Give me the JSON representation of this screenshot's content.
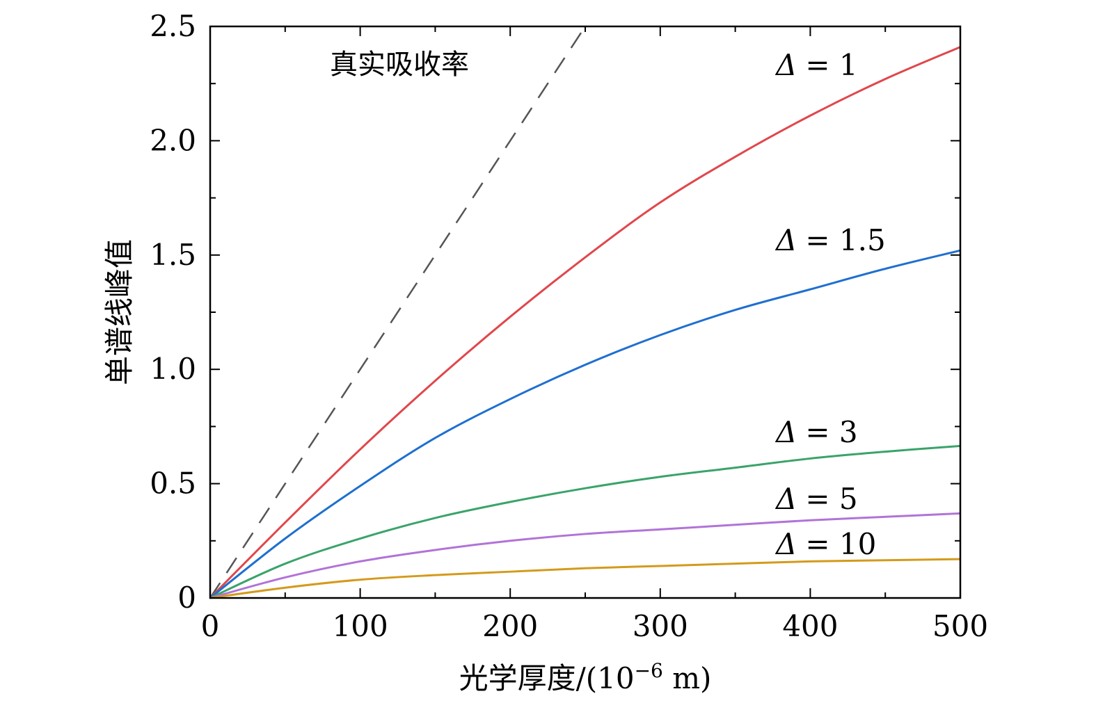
{
  "chart_data": {
    "type": "line",
    "title": "",
    "xlabel": "光学厚度/(10",
    "xlabel_sup": "−6",
    "xlabel_tail": " m)",
    "ylabel": "单谱线峰值",
    "xlim": [
      0,
      500
    ],
    "ylim": [
      0,
      2.5
    ],
    "x_ticks": [
      0,
      100,
      200,
      300,
      400,
      500
    ],
    "x_tick_labels": [
      "0",
      "100",
      "200",
      "300",
      "400",
      "500"
    ],
    "y_ticks": [
      0,
      0.5,
      1.0,
      1.5,
      2.0,
      2.5
    ],
    "y_tick_labels": [
      "0",
      "0.5",
      "1.0",
      "1.5",
      "2.0",
      "2.5"
    ],
    "x_minor_step": 50,
    "y_minor_step": 0.25,
    "grid": false,
    "annotation": "真实吸收率",
    "x": [
      0,
      50,
      100,
      150,
      200,
      250,
      300,
      350,
      400,
      450,
      500
    ],
    "series": [
      {
        "name": "真实吸收率",
        "label_symbol": "",
        "label_value": "",
        "color": "#555555",
        "dashed": true,
        "x": [
          0,
          250
        ],
        "values": [
          0,
          2.5
        ]
      },
      {
        "name": "Δ = 1",
        "label_symbol": "Δ",
        "label_value": "= 1",
        "color": "#e0474c",
        "dashed": false,
        "values": [
          0,
          0.33,
          0.65,
          0.95,
          1.23,
          1.49,
          1.73,
          1.93,
          2.11,
          2.27,
          2.41
        ]
      },
      {
        "name": "Δ = 1.5",
        "label_symbol": "Δ",
        "label_value": "= 1.5",
        "color": "#1f6fd0",
        "dashed": false,
        "values": [
          0,
          0.26,
          0.49,
          0.7,
          0.87,
          1.02,
          1.15,
          1.26,
          1.35,
          1.44,
          1.52
        ]
      },
      {
        "name": "Δ = 3",
        "label_symbol": "Δ",
        "label_value": "= 3",
        "color": "#3aa36a",
        "dashed": false,
        "values": [
          0,
          0.15,
          0.26,
          0.35,
          0.42,
          0.48,
          0.53,
          0.57,
          0.61,
          0.64,
          0.665
        ]
      },
      {
        "name": "Δ = 5",
        "label_symbol": "Δ",
        "label_value": "= 5",
        "color": "#b173d8",
        "dashed": false,
        "values": [
          0,
          0.09,
          0.16,
          0.21,
          0.25,
          0.28,
          0.3,
          0.32,
          0.34,
          0.355,
          0.37
        ]
      },
      {
        "name": "Δ = 10",
        "label_symbol": "Δ",
        "label_value": "= 10",
        "color": "#d49a1a",
        "dashed": false,
        "values": [
          0,
          0.045,
          0.08,
          0.1,
          0.115,
          0.13,
          0.14,
          0.15,
          0.16,
          0.165,
          0.17
        ]
      }
    ]
  }
}
